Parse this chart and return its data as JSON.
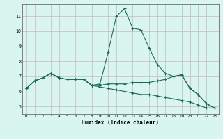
{
  "xlabel": "Humidex (Indice chaleur)",
  "bg_color": "#d8f5f0",
  "grid_color": "#c8b8b8",
  "line_color": "#1a6b5a",
  "x_values": [
    0,
    1,
    2,
    3,
    4,
    5,
    6,
    7,
    8,
    9,
    10,
    11,
    12,
    13,
    14,
    15,
    16,
    17,
    18,
    19,
    20,
    21,
    22,
    23
  ],
  "line1": [
    6.2,
    6.7,
    6.9,
    7.2,
    6.9,
    6.8,
    6.8,
    6.8,
    6.4,
    6.5,
    8.6,
    11.0,
    11.5,
    10.2,
    10.1,
    8.9,
    7.8,
    7.2,
    7.0,
    7.1,
    6.2,
    5.8,
    5.2,
    4.9
  ],
  "line2": [
    6.2,
    6.7,
    6.9,
    7.2,
    6.9,
    6.8,
    6.8,
    6.8,
    6.4,
    6.4,
    6.5,
    6.5,
    6.5,
    6.6,
    6.6,
    6.6,
    6.7,
    6.8,
    7.0,
    7.1,
    6.2,
    5.8,
    5.2,
    4.9
  ],
  "line3": [
    6.2,
    6.7,
    6.9,
    7.2,
    6.9,
    6.8,
    6.8,
    6.8,
    6.4,
    6.3,
    6.2,
    6.1,
    6.0,
    5.9,
    5.8,
    5.8,
    5.7,
    5.6,
    5.5,
    5.4,
    5.3,
    5.1,
    4.9,
    4.9
  ],
  "xlim": [
    -0.5,
    23.5
  ],
  "ylim": [
    4.5,
    11.8
  ],
  "yticks": [
    5,
    6,
    7,
    8,
    9,
    10,
    11
  ],
  "xticks": [
    0,
    1,
    2,
    3,
    4,
    5,
    6,
    7,
    8,
    9,
    10,
    11,
    12,
    13,
    14,
    15,
    16,
    17,
    18,
    19,
    20,
    21,
    22,
    23
  ]
}
